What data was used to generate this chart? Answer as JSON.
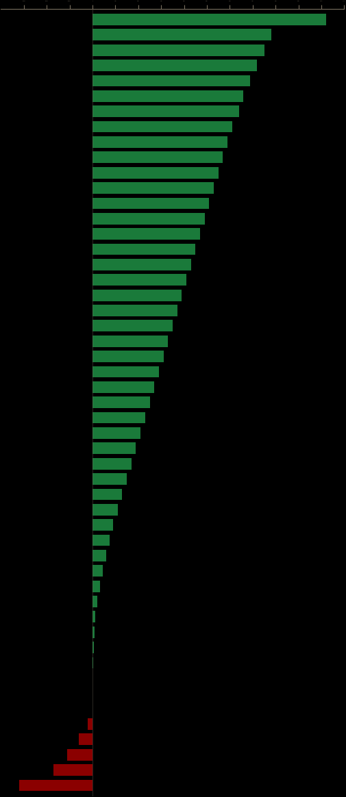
{
  "values": [
    10200,
    7800,
    7500,
    7200,
    6900,
    6600,
    6400,
    6100,
    5900,
    5700,
    5500,
    5300,
    5100,
    4900,
    4700,
    4500,
    4300,
    4100,
    3900,
    3700,
    3500,
    3300,
    3100,
    2900,
    2700,
    2500,
    2300,
    2100,
    1900,
    1700,
    1500,
    1300,
    1100,
    900,
    750,
    600,
    450,
    320,
    200,
    130,
    80,
    50,
    30,
    15,
    5,
    -10,
    -200,
    -600,
    -1100,
    -1700,
    -3200
  ],
  "bar_color_positive": "#1a7a3a",
  "bar_color_negative": "#8b0000",
  "background_color": "#000000",
  "axis_color": "#7a7060",
  "n_bars": 51,
  "xlim": [
    -4000,
    11000
  ],
  "bar_height": 0.75,
  "figsize": [
    5.06,
    11.64
  ],
  "dpi": 100
}
